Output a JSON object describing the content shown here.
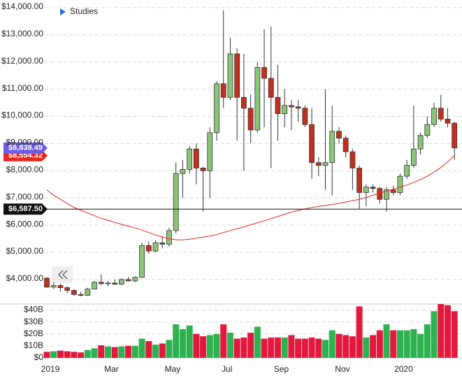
{
  "chart_data": {
    "type": "candlestick",
    "legend_label": "Studies",
    "categories": [
      "2019",
      null,
      null,
      null,
      null,
      null,
      null,
      null,
      null,
      "Mar",
      null,
      null,
      null,
      null,
      null,
      null,
      null,
      null,
      "May",
      null,
      null,
      null,
      null,
      null,
      null,
      null,
      "Jul",
      null,
      null,
      null,
      null,
      null,
      null,
      null,
      "Sep",
      null,
      null,
      null,
      null,
      null,
      null,
      null,
      null,
      "Nov",
      null,
      null,
      null,
      null,
      null,
      null,
      null,
      null,
      "2020",
      null,
      null,
      null,
      null,
      null,
      null,
      null,
      null
    ],
    "open": [
      4050,
      3720,
      3780,
      3700,
      3600,
      3450,
      3420,
      3650,
      3900,
      3850,
      3870,
      3830,
      4000,
      3950,
      4080,
      5250,
      5050,
      5350,
      5300,
      5800,
      7900,
      8050,
      8800,
      8100,
      8000,
      9400,
      11200,
      10700,
      12300,
      10700,
      10300,
      9500,
      11800,
      11400,
      10700,
      10100,
      10400,
      10350,
      10300,
      9700,
      8300,
      8200,
      8300,
      9450,
      9200,
      8700,
      8100,
      7200,
      7400,
      7350,
      6950,
      7300,
      7200,
      7800,
      8200,
      8800,
      9300,
      9700,
      10300,
      9900,
      9750
    ],
    "high": [
      4100,
      3900,
      3850,
      3750,
      3650,
      3550,
      3700,
      3950,
      4200,
      3950,
      4000,
      4050,
      4100,
      4120,
      5350,
      5400,
      5450,
      5600,
      5900,
      8300,
      8400,
      8900,
      9000,
      8150,
      9600,
      11300,
      13900,
      12900,
      12500,
      12300,
      10800,
      12000,
      13200,
      13300,
      11900,
      11000,
      10600,
      10600,
      10400,
      10300,
      8500,
      11000,
      10400,
      9600,
      9300,
      8800,
      8200,
      7500,
      7500,
      7400,
      7400,
      7450,
      7900,
      8400,
      10400,
      9400,
      10000,
      10500,
      10800,
      10300,
      9800
    ],
    "low": [
      3700,
      3650,
      3550,
      3500,
      3400,
      3380,
      3400,
      3630,
      3800,
      3750,
      3800,
      3800,
      3930,
      3900,
      4050,
      4950,
      5000,
      5150,
      5200,
      5700,
      7000,
      7900,
      7500,
      6500,
      7000,
      9100,
      10300,
      10600,
      9100,
      8000,
      9000,
      9400,
      9600,
      8100,
      9100,
      9600,
      9500,
      9800,
      9600,
      7700,
      7800,
      7300,
      7100,
      9000,
      8500,
      7300,
      6600,
      6700,
      7200,
      6800,
      6500,
      7100,
      7100,
      7700,
      8100,
      8600,
      9200,
      9600,
      9800,
      9600,
      8400
    ],
    "close": [
      3720,
      3780,
      3700,
      3600,
      3450,
      3420,
      3650,
      3900,
      3850,
      3870,
      3830,
      4000,
      3950,
      4080,
      5250,
      5050,
      5350,
      5300,
      5800,
      7900,
      8050,
      8800,
      8100,
      8000,
      9400,
      11200,
      10700,
      12300,
      10700,
      10300,
      9500,
      11800,
      11400,
      10700,
      10100,
      10400,
      10350,
      10300,
      9700,
      8300,
      8200,
      8300,
      9450,
      9200,
      8700,
      8100,
      7200,
      7400,
      7350,
      6950,
      7300,
      7200,
      7800,
      8200,
      8800,
      9300,
      9700,
      10300,
      9900,
      9750,
      8838.49
    ],
    "up_color": "#8cc47a",
    "down_color": "#c0301c",
    "ylim": [
      3100,
      14280
    ],
    "yticks": [
      {
        "value": 4000,
        "label": "$4,000.00"
      },
      {
        "value": 5000,
        "label": "$5,000.00"
      },
      {
        "value": 6000,
        "label": "$6,000.00"
      },
      {
        "value": 7000,
        "label": "$7,000.00"
      },
      {
        "value": 8000,
        "label": "$8,000.00"
      },
      {
        "value": 9000,
        "label": "$9,000.00"
      },
      {
        "value": 10000,
        "label": "$10,000.00"
      },
      {
        "value": 11000,
        "label": "$11,000.00"
      },
      {
        "value": 12000,
        "label": "$12,000.00"
      },
      {
        "value": 13000,
        "label": "$13,000.00"
      },
      {
        "value": 14000,
        "label": "$14,000.00"
      }
    ],
    "grid": true,
    "moving_average": {
      "color": "#e8261c",
      "values": [
        7300,
        7100,
        6950,
        6800,
        6650,
        6550,
        6450,
        6350,
        6250,
        6180,
        6100,
        6030,
        5960,
        5900,
        5820,
        5730,
        5640,
        5560,
        5500,
        5460,
        5460,
        5480,
        5520,
        5560,
        5600,
        5650,
        5730,
        5800,
        5870,
        5940,
        6010,
        6090,
        6160,
        6240,
        6320,
        6400,
        6480,
        6540,
        6600,
        6650,
        6690,
        6720,
        6760,
        6800,
        6850,
        6900,
        6950,
        7020,
        7100,
        7180,
        7250,
        7320,
        7400,
        7480,
        7570,
        7680,
        7800,
        7950,
        8120,
        8330,
        8554.32
      ]
    },
    "volume": {
      "values": [
        5,
        5.5,
        6,
        5.5,
        5,
        4.5,
        6.5,
        8,
        10.5,
        9.5,
        9,
        9.5,
        10,
        10,
        16,
        14,
        11,
        12,
        15,
        28,
        24,
        27,
        20,
        18,
        19,
        20,
        28,
        21,
        16,
        17,
        21,
        26,
        16,
        17,
        17,
        17,
        19,
        16,
        16,
        17,
        16,
        15,
        23,
        20,
        19,
        18,
        43,
        17,
        19,
        23,
        28,
        23,
        23,
        23,
        24,
        20,
        28,
        39,
        45,
        44,
        39
      ],
      "up_color": "#2db24f",
      "down_color": "#e2183d",
      "ylim": [
        0,
        45
      ],
      "yticks": [
        {
          "value": 0,
          "label": "$0"
        },
        {
          "value": 10,
          "label": "$10B"
        },
        {
          "value": 20,
          "label": "$20B"
        },
        {
          "value": 30,
          "label": "$30B"
        },
        {
          "value": 40,
          "label": "$40B"
        }
      ]
    },
    "markers": [
      {
        "value": 6587.5,
        "label": "$6,587.50",
        "color": "#111111",
        "line": true
      },
      {
        "value": 8554.32,
        "label": "$8,554.32",
        "color": "#e8261c",
        "line": false
      },
      {
        "value": 8838.49,
        "label": "$8,838.49",
        "color": "#6b5ce7",
        "line": false
      }
    ]
  }
}
